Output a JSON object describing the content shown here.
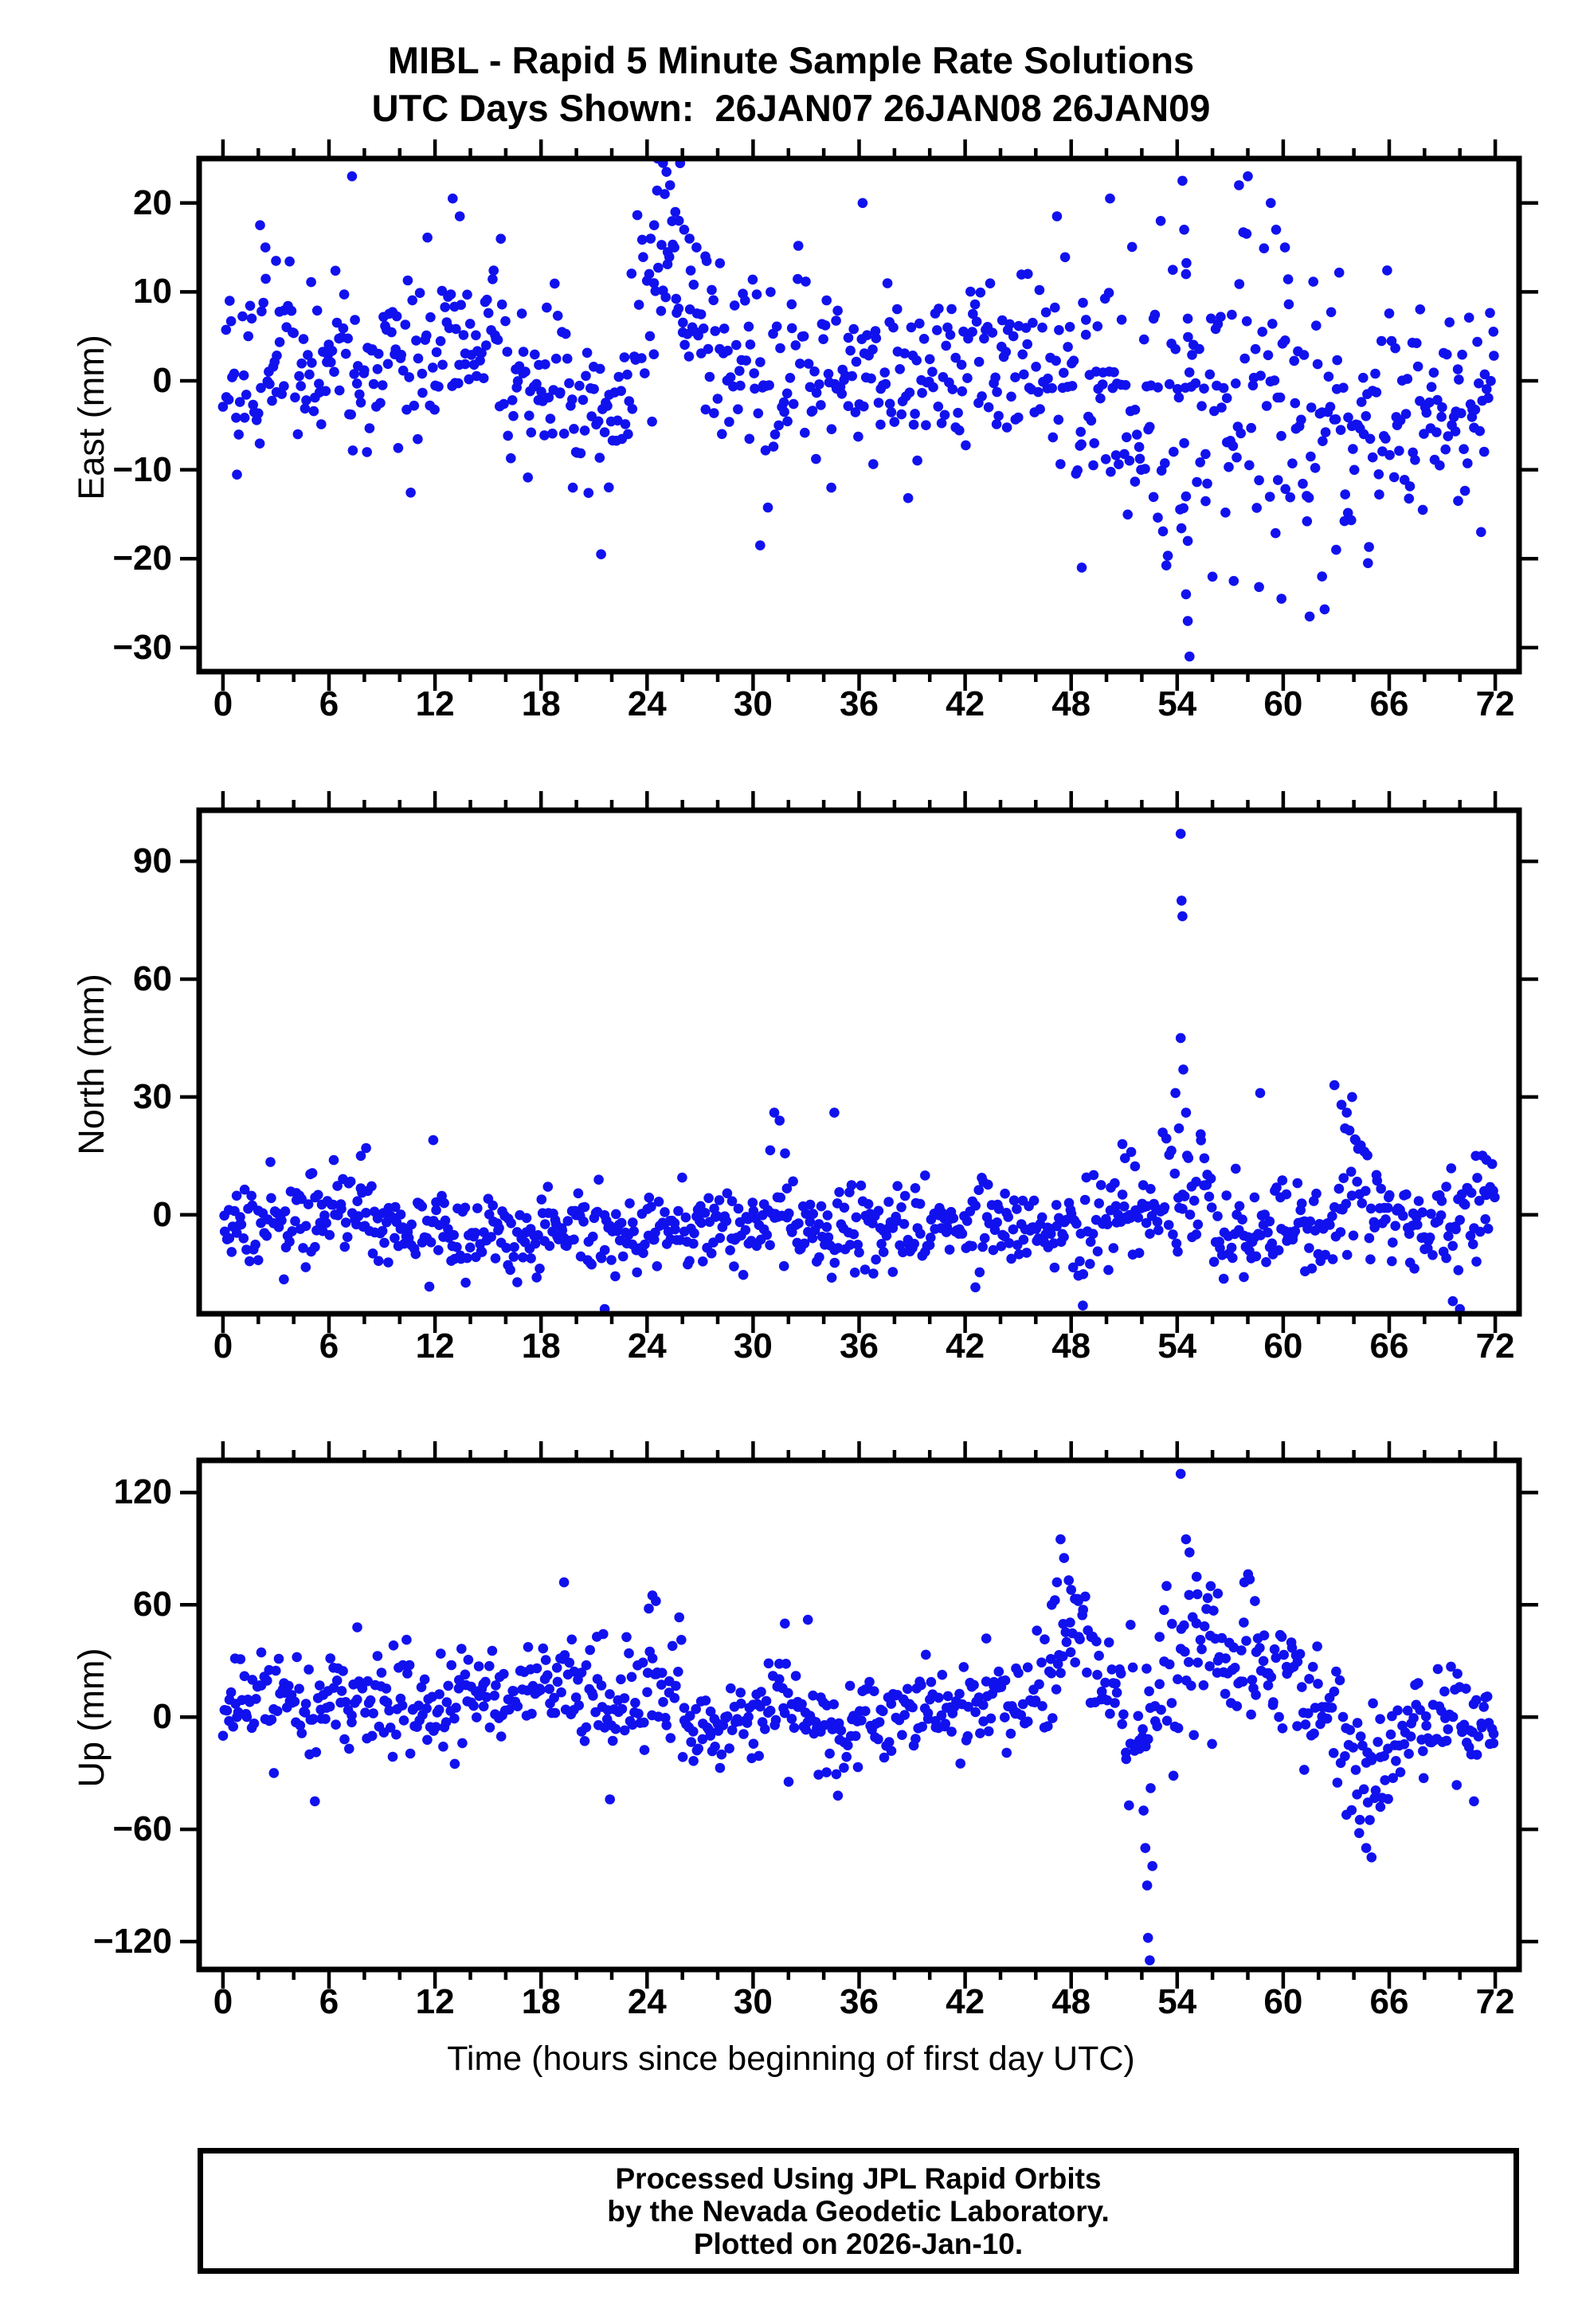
{
  "title": {
    "line1": "MIBL - Rapid 5 Minute Sample Rate Solutions",
    "line2": "UTC Days Shown:  26JAN07 26JAN08 26JAN09"
  },
  "xlabel": "Time (hours since beginning of first day UTC)",
  "footer": {
    "line1": "Processed Using JPL Rapid Orbits",
    "line2": "by the Nevada Geodetic Laboratory.",
    "line3": "Plotted on 2026-Jan-10."
  },
  "point_color": "#1111ee",
  "frame_color": "#000000",
  "chart_data": [
    {
      "type": "scatter",
      "ylabel": "East (mm)",
      "xlim": [
        -1.35,
        73.35
      ],
      "ylim": [
        -32.7,
        25.0
      ],
      "xticks": [
        0,
        6,
        12,
        18,
        24,
        30,
        36,
        42,
        48,
        54,
        60,
        66,
        72
      ],
      "xtick_minor_step": 2,
      "yticks": [
        20,
        10,
        0,
        -10,
        -20,
        -30
      ],
      "n_points": 830,
      "seed": 20107,
      "band_segments": [
        [
          0,
          1.5,
          -2,
          5
        ],
        [
          1.5,
          3,
          1,
          7
        ],
        [
          3,
          6,
          2,
          4.5
        ],
        [
          6,
          9,
          2,
          5
        ],
        [
          9,
          12,
          3,
          4.5
        ],
        [
          12,
          14,
          4,
          6
        ],
        [
          14,
          16,
          4,
          4
        ],
        [
          16,
          18,
          0,
          4.5
        ],
        [
          18,
          20,
          -2,
          4.5
        ],
        [
          20,
          23,
          -3,
          5.5
        ],
        [
          23,
          24.5,
          6,
          7
        ],
        [
          24.5,
          26,
          14,
          6
        ],
        [
          26,
          28,
          6,
          5
        ],
        [
          28,
          30,
          3,
          5
        ],
        [
          30,
          33,
          2,
          5.5
        ],
        [
          33,
          36,
          1,
          4.5
        ],
        [
          36,
          39,
          1,
          5
        ],
        [
          39,
          42,
          1,
          4.5
        ],
        [
          42,
          45,
          1,
          5
        ],
        [
          45,
          48,
          0,
          6
        ],
        [
          48,
          50,
          -2,
          6.5
        ],
        [
          50,
          53,
          -4,
          7
        ],
        [
          53,
          56,
          -4,
          11
        ],
        [
          56,
          59,
          0,
          9
        ],
        [
          59,
          62,
          -3,
          9
        ],
        [
          62,
          65,
          -5,
          7
        ],
        [
          65,
          68,
          -4,
          6
        ],
        [
          68,
          72,
          -3,
          5
        ]
      ],
      "outliers": [
        [
          7.3,
          23
        ],
        [
          13,
          20.5
        ],
        [
          13.4,
          18.5
        ],
        [
          2.1,
          17.5
        ],
        [
          2.4,
          15
        ],
        [
          3,
          13.5
        ],
        [
          24.6,
          25
        ],
        [
          24.9,
          24.5
        ],
        [
          25.1,
          23.5
        ],
        [
          25.3,
          22
        ],
        [
          25.0,
          21
        ],
        [
          25.6,
          19
        ],
        [
          25.8,
          18
        ],
        [
          26.1,
          17
        ],
        [
          26.4,
          16
        ],
        [
          26.8,
          15
        ],
        [
          27.3,
          14
        ],
        [
          24.4,
          17.5
        ],
        [
          24.2,
          16
        ],
        [
          21.4,
          -19.5
        ],
        [
          30.4,
          -18.5
        ],
        [
          36.2,
          20
        ],
        [
          50.2,
          20.5
        ],
        [
          47.2,
          18.5
        ],
        [
          54.3,
          22.5
        ],
        [
          54.4,
          17
        ],
        [
          54.5,
          12
        ],
        [
          54.6,
          7
        ],
        [
          54.4,
          -7
        ],
        [
          54.5,
          -13
        ],
        [
          54.6,
          -18
        ],
        [
          54.5,
          -24
        ],
        [
          54.6,
          -27
        ],
        [
          54.7,
          -31
        ],
        [
          57.5,
          22
        ],
        [
          58.0,
          23
        ],
        [
          59.3,
          20
        ],
        [
          59.6,
          17
        ],
        [
          60.1,
          15
        ],
        [
          48.6,
          -21
        ],
        [
          57.2,
          -22.5
        ],
        [
          59.9,
          -24.5
        ],
        [
          61.5,
          -26.5
        ],
        [
          62.2,
          -22
        ],
        [
          63.0,
          -19
        ],
        [
          64.8,
          -20.5
        ],
        [
          69.9,
          -13.5
        ],
        [
          71.2,
          -17
        ]
      ]
    },
    {
      "type": "scatter",
      "ylabel": "North (mm)",
      "xlim": [
        -1.35,
        73.35
      ],
      "ylim": [
        -25.2,
        103.0
      ],
      "xticks": [
        0,
        6,
        12,
        18,
        24,
        30,
        36,
        42,
        48,
        54,
        60,
        66,
        72
      ],
      "xtick_minor_step": 2,
      "yticks": [
        90,
        60,
        30,
        0
      ],
      "n_points": 830,
      "seed": 40213,
      "band_segments": [
        [
          0,
          2,
          -4,
          5
        ],
        [
          2,
          4,
          -2,
          5
        ],
        [
          4,
          6,
          -1,
          5.5
        ],
        [
          6,
          8,
          2,
          6
        ],
        [
          8,
          10,
          -2,
          5
        ],
        [
          10,
          13,
          -3,
          5
        ],
        [
          13,
          16,
          -5,
          5
        ],
        [
          16,
          18,
          -4,
          5
        ],
        [
          18,
          21,
          -3,
          5.5
        ],
        [
          21,
          24,
          -5,
          6
        ],
        [
          24,
          27,
          -3,
          5
        ],
        [
          27,
          30,
          -4,
          5.5
        ],
        [
          30,
          32,
          0,
          7
        ],
        [
          32,
          34,
          -3,
          6
        ],
        [
          34,
          36,
          -2,
          6
        ],
        [
          36,
          39,
          -3,
          5
        ],
        [
          39,
          42,
          -3,
          5
        ],
        [
          42,
          45,
          -3,
          5.5
        ],
        [
          45,
          48,
          -4,
          5.5
        ],
        [
          48,
          50,
          -5,
          6.5
        ],
        [
          50,
          53,
          1,
          6
        ],
        [
          53,
          56,
          3,
          8
        ],
        [
          56,
          58,
          -7,
          6
        ],
        [
          58,
          60,
          -3,
          6
        ],
        [
          60,
          63,
          -1,
          6.5
        ],
        [
          63,
          65,
          2,
          8
        ],
        [
          65,
          68,
          -2,
          5.5
        ],
        [
          68,
          70,
          -3,
          6
        ],
        [
          70,
          72,
          3,
          6.5
        ]
      ],
      "outliers": [
        [
          54.2,
          97
        ],
        [
          54.25,
          80
        ],
        [
          54.3,
          76
        ],
        [
          54.2,
          45
        ],
        [
          54.35,
          37
        ],
        [
          53.9,
          31
        ],
        [
          54.5,
          26
        ],
        [
          54.1,
          22
        ],
        [
          31.2,
          26
        ],
        [
          31.5,
          24
        ],
        [
          34.6,
          26
        ],
        [
          58.7,
          31
        ],
        [
          62.9,
          33
        ],
        [
          63.3,
          28
        ],
        [
          63.6,
          26
        ],
        [
          63.9,
          30
        ],
        [
          63.5,
          22
        ],
        [
          64.1,
          19
        ],
        [
          21.6,
          -24
        ],
        [
          48.7,
          -26
        ],
        [
          70.0,
          -24
        ],
        [
          69.6,
          -22
        ],
        [
          8.1,
          17
        ],
        [
          7.8,
          15
        ],
        [
          11.9,
          19
        ],
        [
          70.9,
          15
        ],
        [
          71.5,
          14
        ],
        [
          50.9,
          18
        ],
        [
          51.4,
          16
        ]
      ]
    },
    {
      "type": "scatter",
      "ylabel": "Up (mm)",
      "xlim": [
        -1.35,
        73.35
      ],
      "ylim": [
        -134.9,
        137.2
      ],
      "xticks": [
        0,
        6,
        12,
        18,
        24,
        30,
        36,
        42,
        48,
        54,
        60,
        66,
        72
      ],
      "xtick_minor_step": 2,
      "yticks": [
        120,
        60,
        0,
        -60,
        -120
      ],
      "n_points": 830,
      "seed": 77031,
      "band_segments": [
        [
          0,
          2,
          8,
          13
        ],
        [
          2,
          4,
          10,
          14
        ],
        [
          4,
          6,
          5,
          15
        ],
        [
          6,
          9,
          12,
          14
        ],
        [
          9,
          12,
          8,
          14
        ],
        [
          12,
          15,
          12,
          14
        ],
        [
          15,
          18,
          15,
          14
        ],
        [
          18,
          20,
          18,
          15
        ],
        [
          20,
          22,
          10,
          15
        ],
        [
          22,
          24,
          15,
          16
        ],
        [
          24,
          26,
          20,
          17
        ],
        [
          26,
          28,
          -5,
          14
        ],
        [
          28,
          30,
          -8,
          13
        ],
        [
          30,
          32,
          8,
          14
        ],
        [
          32,
          34,
          2,
          14
        ],
        [
          34,
          36,
          -8,
          12
        ],
        [
          36,
          38,
          2,
          12
        ],
        [
          38,
          40,
          5,
          12
        ],
        [
          40,
          42,
          5,
          12
        ],
        [
          42,
          44,
          8,
          13
        ],
        [
          44,
          46,
          5,
          13
        ],
        [
          46,
          47,
          20,
          15
        ],
        [
          47,
          49,
          45,
          18
        ],
        [
          49,
          51,
          15,
          18
        ],
        [
          51,
          53,
          -10,
          22
        ],
        [
          53,
          55,
          25,
          25
        ],
        [
          55,
          57,
          30,
          18
        ],
        [
          57,
          59,
          28,
          17
        ],
        [
          59,
          61,
          18,
          16
        ],
        [
          61,
          63,
          5,
          16
        ],
        [
          63,
          66,
          -22,
          16
        ],
        [
          66,
          68,
          -8,
          14
        ],
        [
          68,
          70,
          0,
          14
        ],
        [
          70,
          72,
          -8,
          13
        ]
      ],
      "outliers": [
        [
          19.3,
          72
        ],
        [
          24.3,
          65
        ],
        [
          24.5,
          62
        ],
        [
          24.1,
          58
        ],
        [
          47.4,
          95
        ],
        [
          47.6,
          85
        ],
        [
          47.2,
          72
        ],
        [
          48.0,
          68
        ],
        [
          48.4,
          62
        ],
        [
          46.9,
          60
        ],
        [
          52.2,
          -70
        ],
        [
          52.3,
          -90
        ],
        [
          52.35,
          -118
        ],
        [
          52.45,
          -130
        ],
        [
          52.1,
          -50
        ],
        [
          52.5,
          -38
        ],
        [
          54.2,
          130
        ],
        [
          54.5,
          95
        ],
        [
          54.7,
          88
        ],
        [
          55.1,
          75
        ],
        [
          55.9,
          70
        ],
        [
          56.3,
          66
        ],
        [
          57.8,
          72
        ],
        [
          58.4,
          62
        ],
        [
          5.2,
          -45
        ],
        [
          21.9,
          -44
        ],
        [
          34.8,
          -42
        ],
        [
          64.3,
          -62
        ],
        [
          64.7,
          -70
        ],
        [
          65.0,
          -75
        ],
        [
          64.9,
          -55
        ],
        [
          65.5,
          -48
        ],
        [
          70.8,
          -45
        ],
        [
          33.1,
          52
        ],
        [
          31.8,
          50
        ],
        [
          43.2,
          42
        ],
        [
          7.6,
          48
        ]
      ]
    }
  ]
}
